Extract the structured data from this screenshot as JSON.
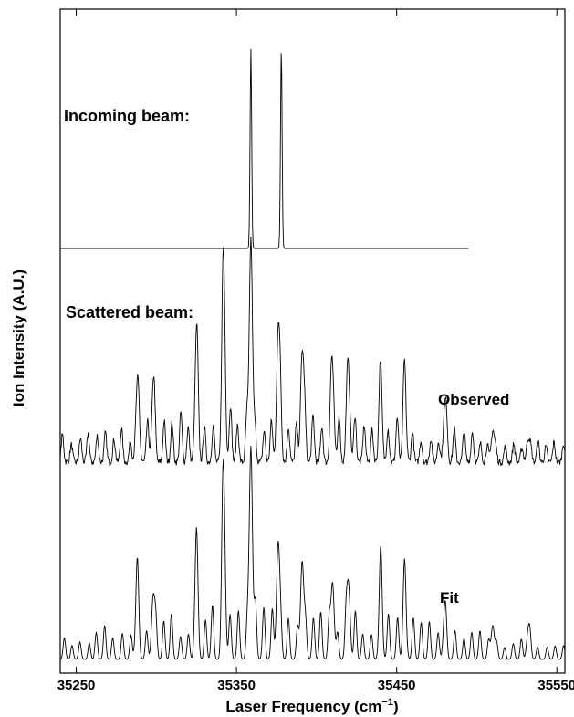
{
  "chart_data": {
    "type": "line",
    "xlabel": "Laser Frequency (cm",
    "xlabel_sup": "−1",
    "xlabel_close": ")",
    "ylabel": "Ion Intensity (A.U.)",
    "xlim": [
      35240,
      35555
    ],
    "xticks": [
      35250,
      35350,
      35450,
      35550
    ],
    "grid": false,
    "annotations": {
      "incoming": "Incoming beam:",
      "scattered": "Scattered beam:",
      "observed": "Observed",
      "fit": "Fit"
    },
    "series": [
      {
        "key": "incoming",
        "x_range": [
          35240,
          35495
        ],
        "peaks": [
          {
            "x": 35359,
            "height": 1.0,
            "width": 0.7
          },
          {
            "x": 35378,
            "height": 1.0,
            "width": 0.7
          }
        ]
      },
      {
        "key": "observed",
        "x_range": [
          35240,
          35555
        ],
        "envelope_center": 35375,
        "envelope_width": 120,
        "noise": true,
        "peaks": [
          {
            "x": 35288,
            "height": 0.3
          },
          {
            "x": 35298,
            "height": 0.27
          },
          {
            "x": 35325,
            "height": 0.49
          },
          {
            "x": 35342,
            "height": 0.81
          },
          {
            "x": 35359,
            "height": 1.0
          },
          {
            "x": 35376,
            "height": 0.55
          },
          {
            "x": 35391,
            "height": 0.48
          },
          {
            "x": 35410,
            "height": 0.38
          },
          {
            "x": 35420,
            "height": 0.35
          },
          {
            "x": 35440,
            "height": 0.32
          },
          {
            "x": 35455,
            "height": 0.28
          },
          {
            "x": 35480,
            "height": 0.22
          },
          {
            "x": 35510,
            "height": 0.14
          },
          {
            "x": 35532,
            "height": 0.1
          }
        ]
      },
      {
        "key": "fit",
        "x_range": [
          35240,
          35555
        ],
        "envelope_center": 35375,
        "envelope_width": 120,
        "noise": false,
        "peaks": [
          {
            "x": 35288,
            "height": 0.31
          },
          {
            "x": 35298,
            "height": 0.29
          },
          {
            "x": 35325,
            "height": 0.46
          },
          {
            "x": 35342,
            "height": 0.77
          },
          {
            "x": 35359,
            "height": 1.0
          },
          {
            "x": 35376,
            "height": 0.54
          },
          {
            "x": 35391,
            "height": 0.46
          },
          {
            "x": 35410,
            "height": 0.36
          },
          {
            "x": 35420,
            "height": 0.34
          },
          {
            "x": 35440,
            "height": 0.33
          },
          {
            "x": 35455,
            "height": 0.3
          },
          {
            "x": 35480,
            "height": 0.2
          },
          {
            "x": 35510,
            "height": 0.16
          },
          {
            "x": 35532,
            "height": 0.12
          }
        ]
      }
    ]
  }
}
